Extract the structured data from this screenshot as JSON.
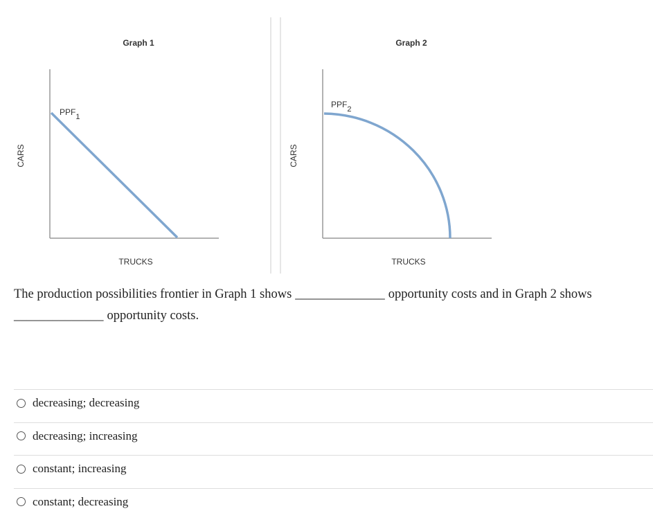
{
  "graphs": [
    {
      "title": "Graph 1",
      "x_label": "TRUCKS",
      "y_label": "CARS",
      "curve_label": {
        "text": "PPF",
        "subscript": "1"
      }
    },
    {
      "title": "Graph 2",
      "x_label": "TRUCKS",
      "y_label": "CARS",
      "curve_label": {
        "text": "PPF",
        "subscript": "2"
      }
    }
  ],
  "question": {
    "parts": [
      "The production possibilities frontier in Graph 1 shows",
      "______________",
      "opportunity costs and in Graph 2 shows",
      "______________",
      "opportunity costs."
    ]
  },
  "options": [
    "decreasing; decreasing",
    "decreasing; increasing",
    "constant; increasing",
    "constant; decreasing"
  ]
}
